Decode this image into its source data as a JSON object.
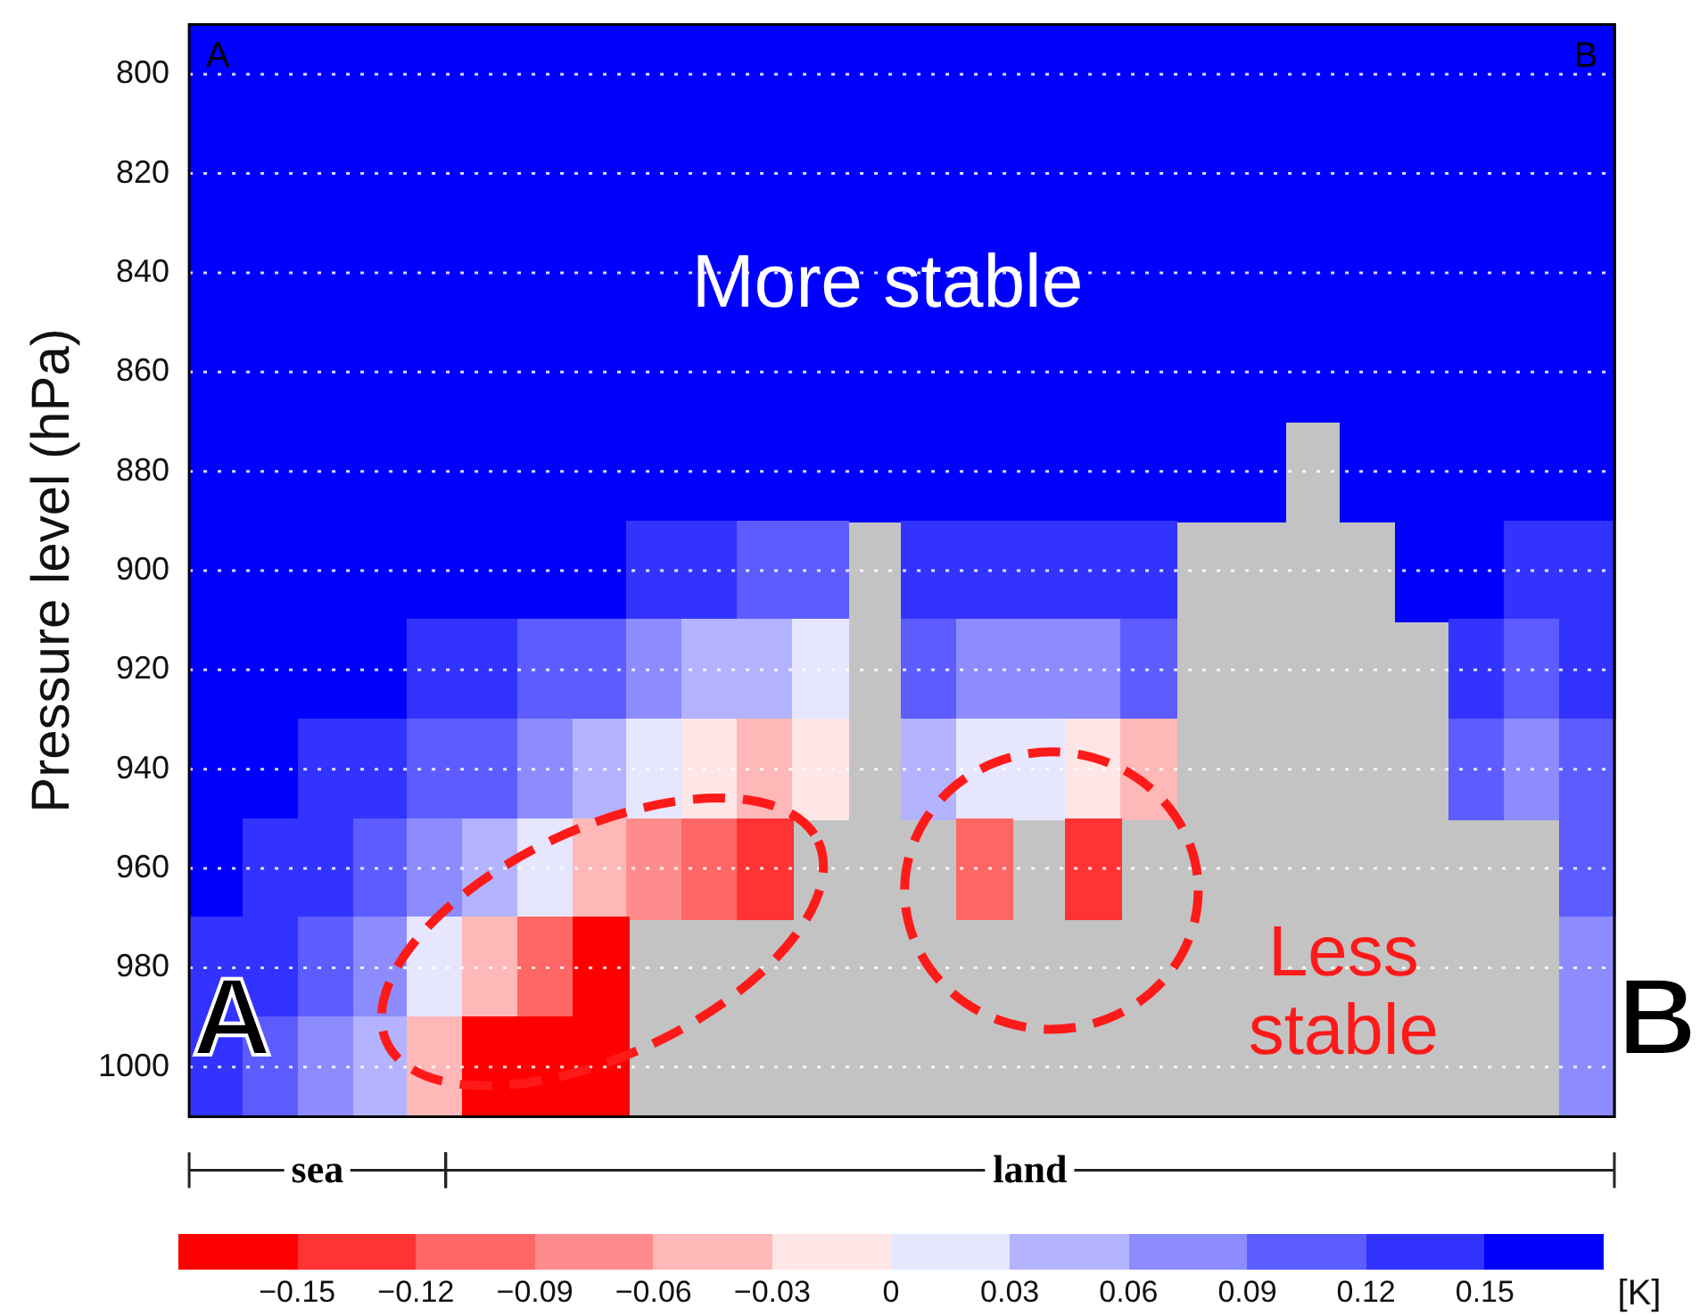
{
  "chart_data": {
    "type": "heatmap",
    "ylabel": "Pressure level (hPa)",
    "clabel": "[K]",
    "categories": [
      null,
      null,
      null,
      null,
      null,
      null,
      null,
      null,
      null,
      null,
      null,
      null,
      null,
      null,
      null,
      null,
      null,
      null,
      null,
      null,
      null,
      null,
      null,
      null,
      null,
      null
    ],
    "y_categories": [
      "800",
      "820",
      "840",
      "860",
      "880",
      "900",
      "920",
      "940",
      "960",
      "980",
      "1000"
    ],
    "cells": [
      [
        0.165,
        0.165,
        0.165,
        0.165,
        0.165,
        0.165,
        0.165,
        0.165,
        0.165,
        0.165,
        0.165,
        0.165,
        0.165,
        0.165,
        0.165,
        0.165,
        0.165,
        0.165,
        0.165,
        0.165,
        0.165,
        0.165,
        0.165,
        0.165,
        0.165,
        0.165
      ],
      [
        0.165,
        0.165,
        0.165,
        0.165,
        0.165,
        0.165,
        0.165,
        0.165,
        0.165,
        0.165,
        0.165,
        0.165,
        0.165,
        0.165,
        0.165,
        0.165,
        0.165,
        0.165,
        0.165,
        0.165,
        0.165,
        0.165,
        0.165,
        0.165,
        0.165,
        0.165
      ],
      [
        0.165,
        0.165,
        0.165,
        0.165,
        0.165,
        0.165,
        0.165,
        0.165,
        0.165,
        0.165,
        0.165,
        0.165,
        0.165,
        0.165,
        0.165,
        0.165,
        0.165,
        0.165,
        0.165,
        0.165,
        0.165,
        0.165,
        0.165,
        0.165,
        0.165,
        0.165
      ],
      [
        0.165,
        0.165,
        0.165,
        0.165,
        0.165,
        0.165,
        0.165,
        0.165,
        0.165,
        0.165,
        0.165,
        0.165,
        0.165,
        0.165,
        0.165,
        0.165,
        0.165,
        0.165,
        0.165,
        0.165,
        0.165,
        0.165,
        0.165,
        0.165,
        0.165,
        0.165
      ],
      [
        0.165,
        0.165,
        0.165,
        0.165,
        0.165,
        0.165,
        0.165,
        0.165,
        0.165,
        0.165,
        0.165,
        0.165,
        0.165,
        0.165,
        0.165,
        0.165,
        0.165,
        0.165,
        0.165,
        0.165,
        null,
        0.165,
        0.165,
        0.165,
        0.165,
        0.165
      ],
      [
        0.165,
        0.165,
        0.165,
        0.165,
        0.165,
        0.165,
        0.165,
        0.165,
        0.135,
        0.135,
        0.105,
        0.105,
        null,
        0.135,
        0.135,
        0.135,
        0.135,
        0.135,
        null,
        null,
        null,
        null,
        0.165,
        0.165,
        0.135,
        0.135
      ],
      [
        0.165,
        0.165,
        0.165,
        0.165,
        0.135,
        0.135,
        0.105,
        0.105,
        0.075,
        0.045,
        0.045,
        0.015,
        null,
        0.105,
        0.075,
        0.075,
        0.075,
        0.105,
        null,
        null,
        null,
        null,
        null,
        0.135,
        0.105,
        0.135
      ],
      [
        0.165,
        0.165,
        0.135,
        0.135,
        0.105,
        0.105,
        0.075,
        0.045,
        0.015,
        -0.015,
        -0.045,
        -0.015,
        null,
        0.045,
        0.015,
        0.015,
        -0.015,
        -0.045,
        null,
        null,
        null,
        null,
        null,
        0.105,
        0.075,
        0.105
      ],
      [
        0.165,
        0.135,
        0.135,
        0.105,
        0.075,
        0.045,
        0.015,
        -0.045,
        -0.075,
        -0.105,
        -0.135,
        null,
        null,
        null,
        -0.105,
        null,
        -0.135,
        null,
        null,
        null,
        null,
        null,
        null,
        null,
        null,
        0.105
      ],
      [
        0.135,
        0.135,
        0.105,
        0.075,
        0.015,
        -0.045,
        -0.105,
        -0.165,
        null,
        null,
        null,
        null,
        null,
        null,
        null,
        null,
        null,
        null,
        null,
        null,
        null,
        null,
        null,
        null,
        null,
        0.075
      ],
      [
        0.135,
        0.105,
        0.075,
        0.045,
        -0.045,
        -0.165,
        -0.165,
        -0.165,
        null,
        null,
        null,
        null,
        null,
        null,
        null,
        null,
        null,
        null,
        null,
        null,
        null,
        null,
        null,
        null,
        null,
        0.075
      ]
    ],
    "clim": [
      -0.18,
      0.18
    ],
    "cticks": [
      -0.15,
      -0.12,
      -0.09,
      -0.06,
      -0.03,
      0,
      0.03,
      0.06,
      0.09,
      0.12,
      0.15
    ],
    "colors": [
      "#ff0000",
      "#ff3333",
      "#ff6666",
      "#ff8c8c",
      "#ffb8b8",
      "#ffe6e6",
      "#e6e6ff",
      "#b3b3ff",
      "#8c8cff",
      "#5c5cff",
      "#3333ff",
      "#0000ff"
    ],
    "grid": "y",
    "legend": false,
    "annotations": [
      "A",
      "B",
      "More stable",
      "Less stable",
      "A",
      "B",
      "sea",
      "land"
    ]
  }
}
